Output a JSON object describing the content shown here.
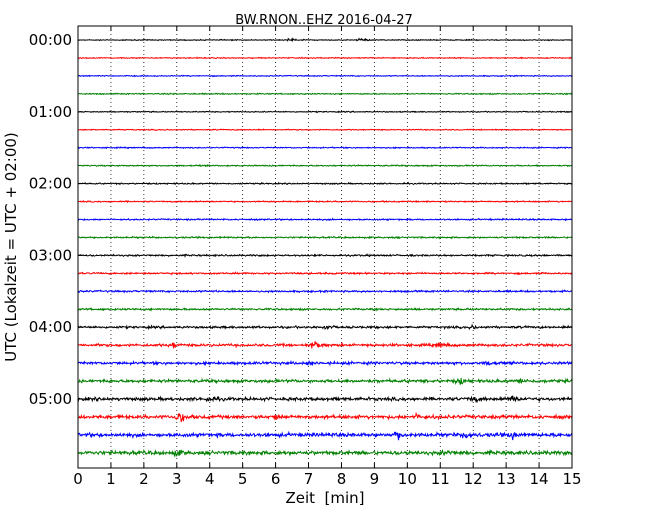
{
  "chart_data": {
    "type": "line",
    "title": "BW.RNON..EHZ 2016-04-27",
    "xlabel": "Zeit  [min]",
    "ylabel": "UTC (Lokalzeit = UTC + 02:00)",
    "xlim": [
      0,
      15
    ],
    "x_ticks": [
      "0",
      "1",
      "2",
      "3",
      "4",
      "5",
      "6",
      "7",
      "8",
      "9",
      "10",
      "11",
      "12",
      "13",
      "14",
      "15"
    ],
    "y_ticks": [
      "00:00",
      "01:00",
      "02:00",
      "03:00",
      "04:00",
      "05:00"
    ],
    "grid": "vertical dotted",
    "trace_interval_min": 15,
    "colors": [
      "#000000",
      "#ff0000",
      "#0000ff",
      "#008000"
    ],
    "series": [
      {
        "start": "00:00",
        "color": "#000000",
        "noise": 0.35,
        "events": [
          {
            "x": 6.5,
            "amp": 1.5
          },
          {
            "x": 8.6,
            "amp": 1.5
          }
        ]
      },
      {
        "start": "00:15",
        "color": "#ff0000",
        "noise": 0.4,
        "events": []
      },
      {
        "start": "00:30",
        "color": "#0000ff",
        "noise": 0.4,
        "events": []
      },
      {
        "start": "00:45",
        "color": "#008000",
        "noise": 0.45,
        "events": []
      },
      {
        "start": "01:00",
        "color": "#000000",
        "noise": 0.4,
        "events": []
      },
      {
        "start": "01:15",
        "color": "#ff0000",
        "noise": 0.4,
        "events": []
      },
      {
        "start": "01:30",
        "color": "#0000ff",
        "noise": 0.45,
        "events": []
      },
      {
        "start": "01:45",
        "color": "#008000",
        "noise": 0.5,
        "events": []
      },
      {
        "start": "02:00",
        "color": "#000000",
        "noise": 0.5,
        "events": []
      },
      {
        "start": "02:15",
        "color": "#ff0000",
        "noise": 0.5,
        "events": []
      },
      {
        "start": "02:30",
        "color": "#0000ff",
        "noise": 0.55,
        "events": []
      },
      {
        "start": "02:45",
        "color": "#008000",
        "noise": 0.6,
        "events": []
      },
      {
        "start": "03:00",
        "color": "#000000",
        "noise": 0.65,
        "events": []
      },
      {
        "start": "03:15",
        "color": "#ff0000",
        "noise": 0.65,
        "events": []
      },
      {
        "start": "03:30",
        "color": "#0000ff",
        "noise": 0.7,
        "events": []
      },
      {
        "start": "03:45",
        "color": "#008000",
        "noise": 0.75,
        "events": []
      },
      {
        "start": "04:00",
        "color": "#000000",
        "noise": 0.85,
        "events": [
          {
            "x": 7.5,
            "amp": 1.6
          },
          {
            "x": 12.0,
            "amp": 1.4
          }
        ]
      },
      {
        "start": "04:15",
        "color": "#ff0000",
        "noise": 1.0,
        "events": [
          {
            "x": 2.9,
            "amp": 2.0
          },
          {
            "x": 7.2,
            "amp": 3.0
          },
          {
            "x": 11.0,
            "amp": 1.6
          }
        ]
      },
      {
        "start": "04:30",
        "color": "#0000ff",
        "noise": 1.05,
        "events": [
          {
            "x": 7.0,
            "amp": 1.6
          },
          {
            "x": 12.5,
            "amp": 1.5
          }
        ]
      },
      {
        "start": "04:45",
        "color": "#008000",
        "noise": 1.15,
        "events": [
          {
            "x": 11.6,
            "amp": 2.2
          },
          {
            "x": 13.5,
            "amp": 1.6
          }
        ]
      },
      {
        "start": "05:00",
        "color": "#000000",
        "noise": 1.25,
        "events": [
          {
            "x": 4.0,
            "amp": 1.8
          },
          {
            "x": 12.0,
            "amp": 2.2
          },
          {
            "x": 13.2,
            "amp": 2.8
          }
        ]
      },
      {
        "start": "05:15",
        "color": "#ff0000",
        "noise": 1.35,
        "events": [
          {
            "x": 3.1,
            "amp": 4.5
          },
          {
            "x": 6.0,
            "amp": 1.8
          },
          {
            "x": 10.3,
            "amp": 1.8
          }
        ]
      },
      {
        "start": "05:30",
        "color": "#0000ff",
        "noise": 1.45,
        "events": [
          {
            "x": 9.7,
            "amp": 3.0
          },
          {
            "x": 11.8,
            "amp": 2.6
          },
          {
            "x": 13.2,
            "amp": 2.0
          }
        ]
      },
      {
        "start": "05:45",
        "color": "#008000",
        "noise": 1.45,
        "events": [
          {
            "x": 3.0,
            "amp": 2.2
          },
          {
            "x": 11.2,
            "amp": 2.0
          }
        ]
      }
    ]
  }
}
